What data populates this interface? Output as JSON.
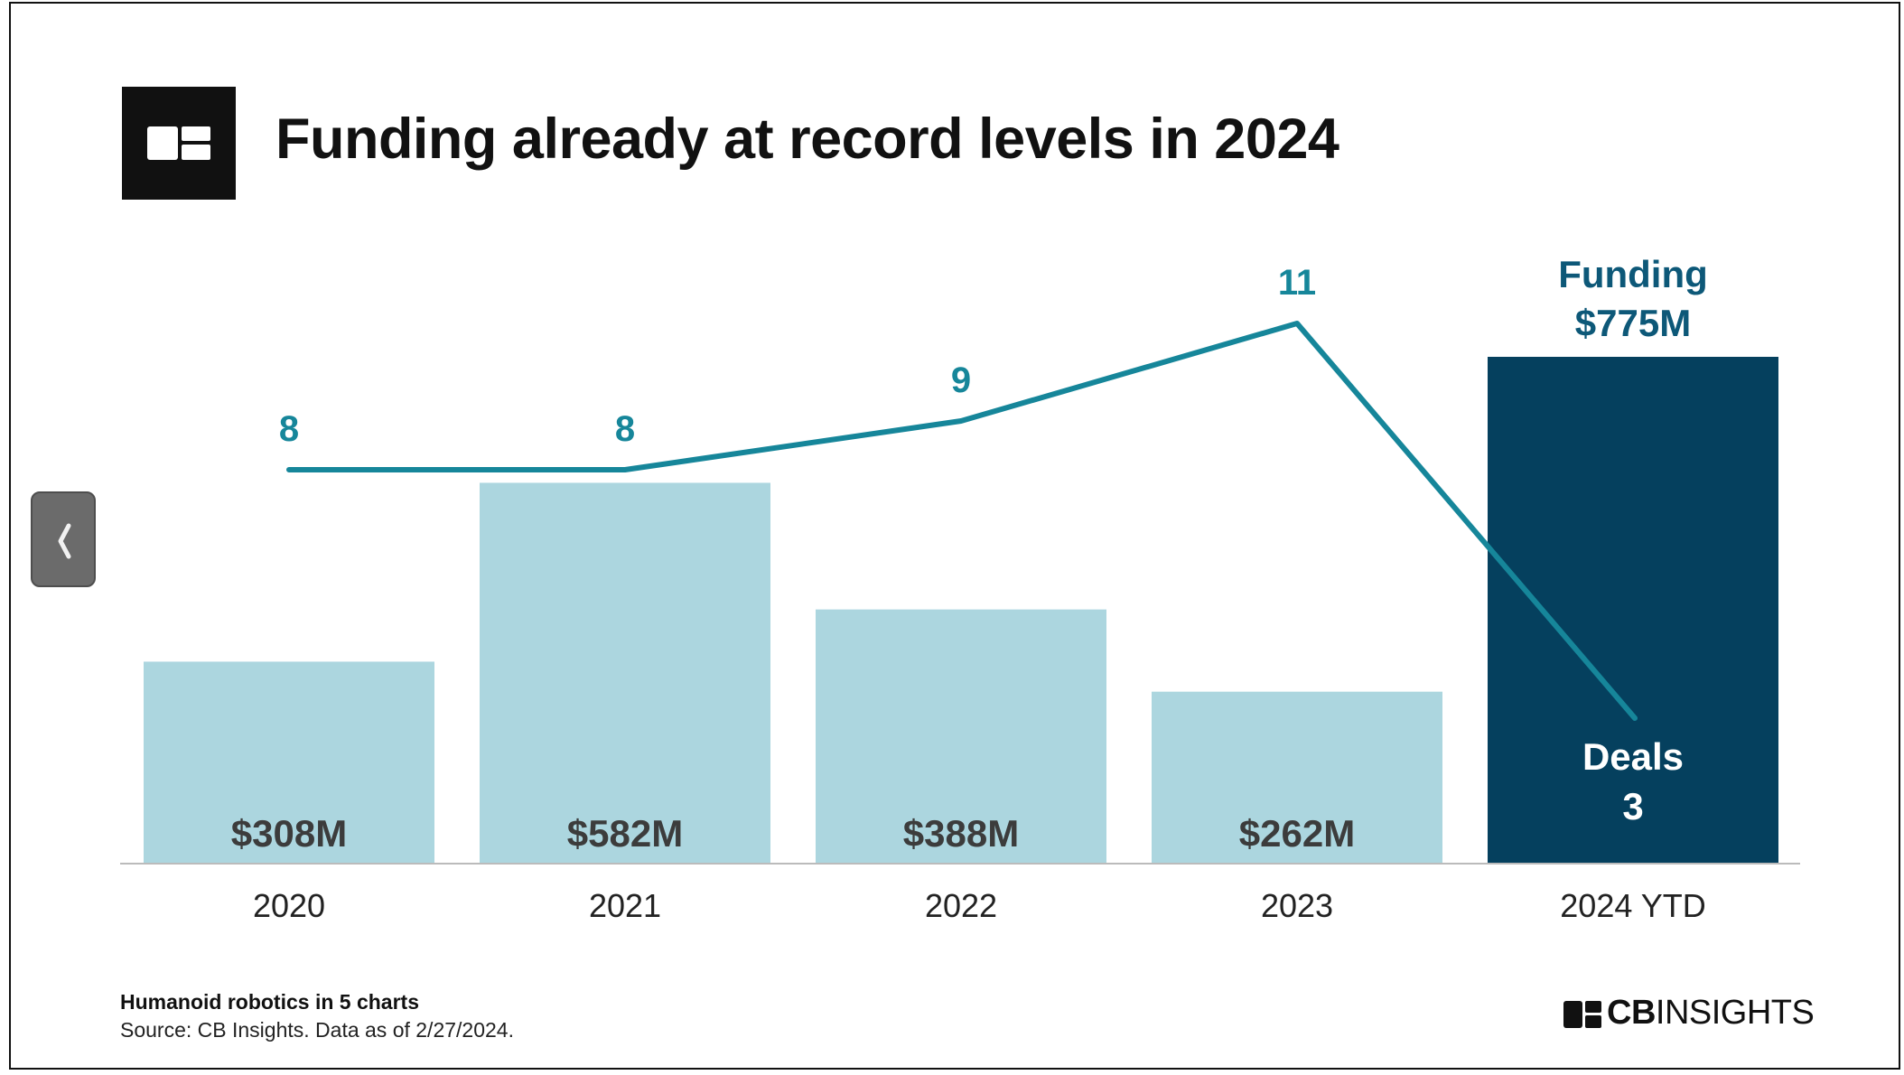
{
  "title": "Funding already at record levels in 2024",
  "footer": {
    "title": "Humanoid robotics in 5 charts",
    "source": "Source: CB Insights. Data as of 2/27/2024."
  },
  "brand": {
    "bold": "CB",
    "rest": "INSIGHTS"
  },
  "icons": {
    "logo": "cb-logo-icon",
    "back": "chevron-left-icon"
  },
  "chart_data": {
    "type": "bar",
    "title": "Funding already at record levels in 2024",
    "categories": [
      "2020",
      "2021",
      "2022",
      "2023",
      "2024 YTD"
    ],
    "series": [
      {
        "name": "Funding",
        "kind": "bar",
        "values": [
          308,
          582,
          388,
          262,
          775
        ],
        "labels": [
          "$308M",
          "$582M",
          "$388M",
          "$262M",
          "$775M"
        ]
      },
      {
        "name": "Deals",
        "kind": "line",
        "values": [
          8,
          8,
          9,
          11,
          3
        ],
        "labels": [
          "8",
          "8",
          "9",
          "11",
          "3"
        ]
      }
    ],
    "last_bar_callouts": {
      "funding_name": "Funding",
      "funding_value": "$775M",
      "deals_name": "Deals",
      "deals_value": "3"
    },
    "colors": {
      "bar": "#acd6df",
      "bar_highlight": "#05405e",
      "line": "#16869a",
      "bar_label": "#3c3c3c",
      "highlight_text": "#ffffff",
      "callout": "#0d5878",
      "axis": "#bbbbbb"
    },
    "grid": false,
    "legend": "none"
  }
}
